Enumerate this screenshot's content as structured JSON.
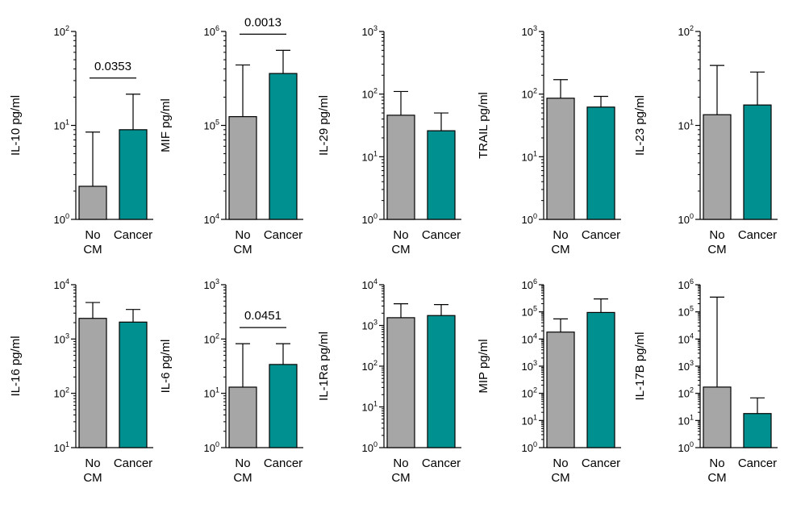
{
  "categories": [
    "No CM",
    "Cancer"
  ],
  "x_labels": {
    "line1_no": "No",
    "line2_cm": "CM",
    "cancer": "Cancer"
  },
  "colors": {
    "no_cm": "#a6a6a6",
    "cancer": "#009090",
    "stroke": "#000000"
  },
  "chart_data": [
    {
      "type": "bar",
      "ylabel": "IL-10 pg/ml",
      "yscale": "log",
      "ylim_exp": [
        0,
        2
      ],
      "categories": [
        "No CM",
        "Cancer"
      ],
      "series": [
        {
          "values": [
            2.25,
            9.0
          ],
          "error_upper": [
            8.5,
            21.5
          ]
        }
      ],
      "pvalue": "0.0353"
    },
    {
      "type": "bar",
      "ylabel": "MIF pg/ml",
      "yscale": "log",
      "ylim_exp": [
        4,
        6
      ],
      "categories": [
        "No CM",
        "Cancer"
      ],
      "series": [
        {
          "values": [
            124000,
            357000
          ],
          "error_upper": [
            440000,
            630000
          ]
        }
      ],
      "pvalue": "0.0013"
    },
    {
      "type": "bar",
      "ylabel": "IL-29 pg/ml",
      "yscale": "log",
      "ylim_exp": [
        0,
        3
      ],
      "categories": [
        "No CM",
        "Cancer"
      ],
      "series": [
        {
          "values": [
            46,
            26
          ],
          "error_upper": [
            110,
            50
          ]
        }
      ],
      "pvalue": ""
    },
    {
      "type": "bar",
      "ylabel": "TRAIL pg/ml",
      "yscale": "log",
      "ylim_exp": [
        0,
        3
      ],
      "categories": [
        "No CM",
        "Cancer"
      ],
      "series": [
        {
          "values": [
            86,
            62
          ],
          "error_upper": [
            170,
            92
          ]
        }
      ],
      "pvalue": ""
    },
    {
      "type": "bar",
      "ylabel": "IL-23 pg/ml",
      "yscale": "log",
      "ylim_exp": [
        0,
        2
      ],
      "categories": [
        "No CM",
        "Cancer"
      ],
      "series": [
        {
          "values": [
            13,
            16.5
          ],
          "error_upper": [
            43.5,
            37
          ]
        }
      ],
      "pvalue": ""
    },
    {
      "type": "bar",
      "ylabel": "IL-16 pg/ml",
      "yscale": "log",
      "ylim_exp": [
        1,
        4
      ],
      "categories": [
        "No CM",
        "Cancer"
      ],
      "series": [
        {
          "values": [
            2400,
            2050
          ],
          "error_upper": [
            4700,
            3500
          ]
        }
      ],
      "pvalue": ""
    },
    {
      "type": "bar",
      "ylabel": "IL-6 pg/ml",
      "yscale": "log",
      "ylim_exp": [
        0,
        3
      ],
      "categories": [
        "No CM",
        "Cancer"
      ],
      "series": [
        {
          "values": [
            13,
            34
          ],
          "error_upper": [
            82,
            82
          ]
        }
      ],
      "pvalue": "0.0451"
    },
    {
      "type": "bar",
      "ylabel": "IL-1Ra pg/ml",
      "yscale": "log",
      "ylim_exp": [
        0,
        4
      ],
      "categories": [
        "No CM",
        "Cancer"
      ],
      "series": [
        {
          "values": [
            1550,
            1750
          ],
          "error_upper": [
            3400,
            3250
          ]
        }
      ],
      "pvalue": ""
    },
    {
      "type": "bar",
      "ylabel": "MIP pg/ml",
      "yscale": "log",
      "ylim_exp": [
        0,
        6
      ],
      "categories": [
        "No CM",
        "Cancer"
      ],
      "series": [
        {
          "values": [
            18000,
            95000
          ],
          "error_upper": [
            55000,
            300000
          ]
        }
      ],
      "pvalue": ""
    },
    {
      "type": "bar",
      "ylabel": "IL-17B pg/ml",
      "yscale": "log",
      "ylim_exp": [
        0,
        6
      ],
      "categories": [
        "No CM",
        "Cancer"
      ],
      "series": [
        {
          "values": [
            170,
            18
          ],
          "error_upper": [
            350000,
            68
          ]
        }
      ],
      "pvalue": ""
    }
  ]
}
